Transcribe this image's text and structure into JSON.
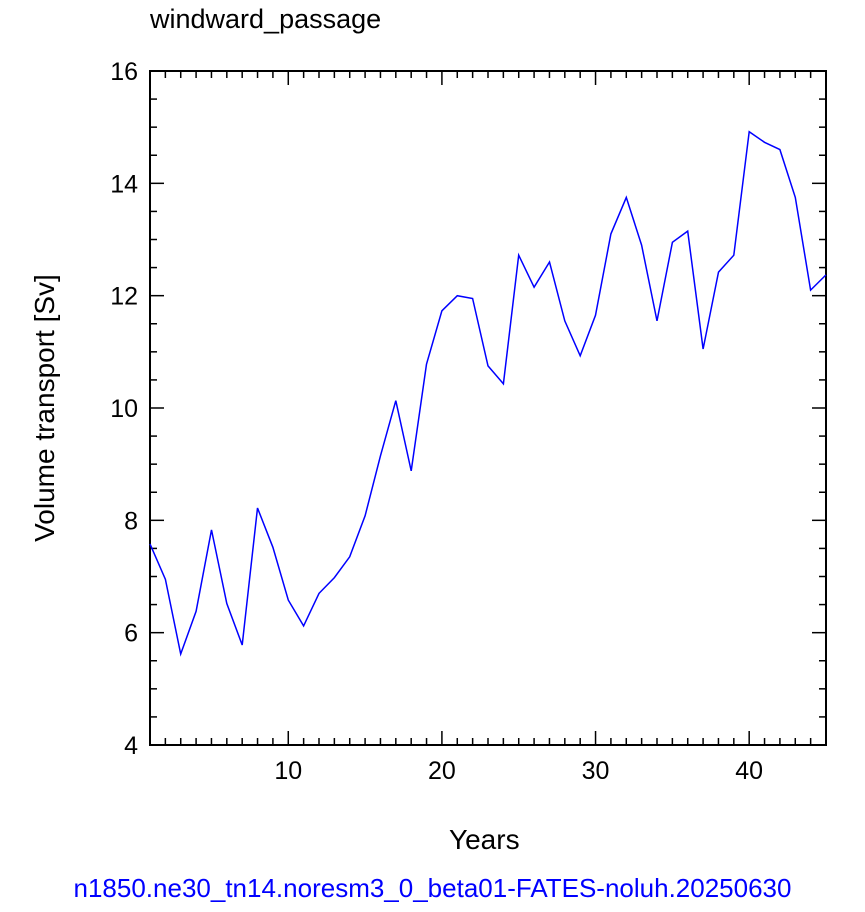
{
  "chart_data": {
    "type": "line",
    "title": "windward_passage",
    "xlabel": "Years",
    "ylabel": "Volume transport [Sv]",
    "xlim": [
      1,
      45
    ],
    "ylim": [
      4,
      16
    ],
    "x_ticks": [
      10,
      20,
      30,
      40
    ],
    "y_ticks": [
      4,
      6,
      8,
      10,
      12,
      14,
      16
    ],
    "grid": false,
    "line_color": "#0000ff",
    "series": [
      {
        "x": [
          1,
          2,
          3,
          4,
          5,
          6,
          7,
          8,
          9,
          10,
          11,
          12,
          13,
          14,
          15,
          16,
          17,
          18,
          19,
          20,
          21,
          22,
          23,
          24,
          25,
          26,
          27,
          28,
          29,
          30,
          31,
          32,
          33,
          34,
          35,
          36,
          37,
          38,
          39,
          40,
          41,
          42,
          43,
          44,
          45
        ],
        "values": [
          7.58,
          6.95,
          5.62,
          6.38,
          7.83,
          6.52,
          5.78,
          8.22,
          7.52,
          6.58,
          6.12,
          6.7,
          6.98,
          7.35,
          8.08,
          9.15,
          10.13,
          8.88,
          10.78,
          11.73,
          12.0,
          11.95,
          10.75,
          10.43,
          12.72,
          12.15,
          12.6,
          11.55,
          10.93,
          11.65,
          13.1,
          13.75,
          12.9,
          11.55,
          12.95,
          13.15,
          11.05,
          12.42,
          12.72,
          14.92,
          14.73,
          14.6,
          13.75,
          12.1,
          12.37
        ]
      }
    ]
  },
  "caption": "n1850.ne30_tn14.noresm3_0_beta01-FATES-noluh.20250630"
}
